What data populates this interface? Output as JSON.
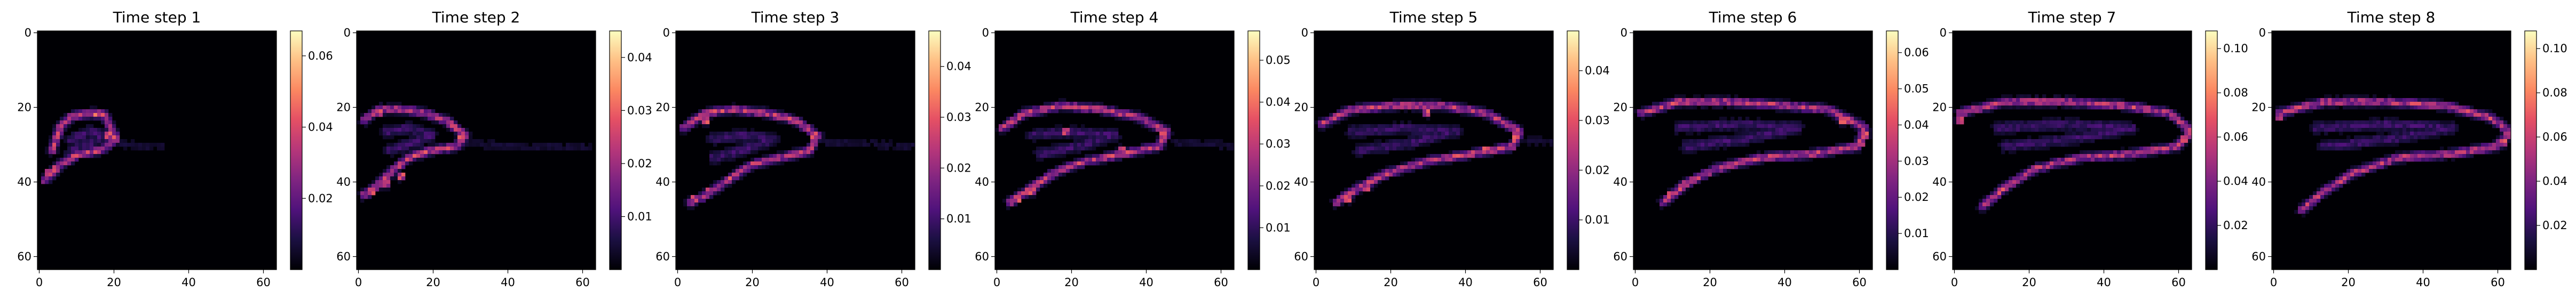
{
  "chart_data": [
    {
      "type": "heatmap",
      "title": "Time step 1",
      "xticks": [
        0,
        20,
        40,
        60
      ],
      "yticks": [
        0,
        20,
        40,
        60
      ],
      "xlim": [
        0,
        64
      ],
      "ylim": [
        64,
        0
      ],
      "grid_size": [
        64,
        64
      ],
      "colormap": "magma",
      "colorbar": {
        "ticks": [
          "0.02",
          "0.04",
          "0.06"
        ],
        "range": [
          0,
          0.067
        ]
      },
      "structure": {
        "outline": [
          [
            4,
            32
          ],
          [
            6,
            26
          ],
          [
            9,
            23
          ],
          [
            15,
            22
          ],
          [
            18,
            22.5
          ],
          [
            21,
            29
          ],
          [
            17,
            32
          ],
          [
            11,
            33
          ],
          [
            6,
            36
          ],
          [
            2,
            40
          ]
        ],
        "inner": [
          [
            9,
            29
          ],
          [
            14,
            27
          ],
          [
            18,
            28
          ],
          [
            14,
            30
          ],
          [
            9,
            32
          ]
        ],
        "bright": [
          [
            19,
            28
          ],
          [
            20,
            29
          ],
          [
            3,
            38
          ],
          [
            5,
            37
          ],
          [
            16,
            22.5
          ]
        ],
        "tail": [
          [
            22,
            30
          ],
          [
            28,
            31
          ],
          [
            34,
            31
          ]
        ]
      },
      "peak_value": 0.067
    },
    {
      "type": "heatmap",
      "title": "Time step 2",
      "xticks": [
        0,
        20,
        40,
        60
      ],
      "yticks": [
        0,
        20,
        40,
        60
      ],
      "xlim": [
        0,
        64
      ],
      "ylim": [
        64,
        0
      ],
      "grid_size": [
        64,
        64
      ],
      "colormap": "magma",
      "colorbar": {
        "ticks": [
          "0.01",
          "0.02",
          "0.03",
          "0.04"
        ],
        "range": [
          0,
          0.045
        ]
      },
      "structure": {
        "outline": [
          [
            2,
            24
          ],
          [
            6,
            21
          ],
          [
            12,
            21
          ],
          [
            18,
            22
          ],
          [
            24,
            24
          ],
          [
            29,
            28
          ],
          [
            27,
            31
          ],
          [
            20,
            32
          ],
          [
            14,
            34
          ],
          [
            9,
            38
          ],
          [
            5,
            42
          ],
          [
            2,
            44
          ]
        ],
        "inner": [
          [
            8,
            27
          ],
          [
            14,
            26
          ],
          [
            20,
            28
          ],
          [
            15,
            30
          ],
          [
            9,
            32
          ]
        ],
        "bright": [
          [
            28,
            28
          ],
          [
            12,
            39
          ],
          [
            8,
            41
          ],
          [
            4,
            43
          ],
          [
            6,
            22
          ]
        ],
        "tail": [
          [
            30,
            30
          ],
          [
            42,
            31
          ],
          [
            55,
            31
          ],
          [
            62,
            31
          ]
        ]
      },
      "peak_value": 0.045
    },
    {
      "type": "heatmap",
      "title": "Time step 3",
      "xticks": [
        0,
        20,
        40,
        60
      ],
      "yticks": [
        0,
        20,
        40,
        60
      ],
      "xlim": [
        0,
        64
      ],
      "ylim": [
        64,
        0
      ],
      "grid_size": [
        64,
        64
      ],
      "colormap": "magma",
      "colorbar": {
        "ticks": [
          "0.01",
          "0.02",
          "0.03",
          "0.04"
        ],
        "range": [
          0,
          0.047
        ]
      },
      "structure": {
        "outline": [
          [
            2,
            26
          ],
          [
            8,
            22
          ],
          [
            16,
            21
          ],
          [
            24,
            22
          ],
          [
            32,
            24
          ],
          [
            38,
            28
          ],
          [
            36,
            32
          ],
          [
            28,
            34
          ],
          [
            20,
            36
          ],
          [
            14,
            40
          ],
          [
            8,
            44
          ],
          [
            4,
            46
          ]
        ],
        "inner": [
          [
            10,
            29
          ],
          [
            18,
            28
          ],
          [
            26,
            29
          ],
          [
            18,
            32
          ],
          [
            10,
            34
          ]
        ],
        "bright": [
          [
            37,
            28
          ],
          [
            14,
            40
          ],
          [
            9,
            43
          ],
          [
            5,
            45
          ],
          [
            8,
            24
          ]
        ],
        "tail": [
          [
            40,
            30
          ],
          [
            50,
            30
          ],
          [
            60,
            31
          ],
          [
            64,
            31
          ]
        ]
      },
      "peak_value": 0.047
    },
    {
      "type": "heatmap",
      "title": "Time step 4",
      "xticks": [
        0,
        20,
        40,
        60
      ],
      "yticks": [
        0,
        20,
        40,
        60
      ],
      "xlim": [
        0,
        64
      ],
      "ylim": [
        64,
        0
      ],
      "grid_size": [
        64,
        64
      ],
      "colormap": "magma",
      "colorbar": {
        "ticks": [
          "0.01",
          "0.02",
          "0.03",
          "0.04",
          "0.05"
        ],
        "range": [
          0,
          0.057
        ]
      },
      "structure": {
        "outline": [
          [
            2,
            26
          ],
          [
            8,
            22
          ],
          [
            18,
            20
          ],
          [
            28,
            21
          ],
          [
            38,
            23
          ],
          [
            46,
            27
          ],
          [
            44,
            31
          ],
          [
            34,
            33
          ],
          [
            24,
            35
          ],
          [
            16,
            38
          ],
          [
            10,
            42
          ],
          [
            4,
            46
          ]
        ],
        "inner": [
          [
            10,
            28
          ],
          [
            20,
            27
          ],
          [
            32,
            28
          ],
          [
            22,
            31
          ],
          [
            12,
            33
          ]
        ],
        "bright": [
          [
            45,
            28
          ],
          [
            19,
            27
          ],
          [
            10,
            43
          ],
          [
            6,
            45
          ],
          [
            34,
            32
          ]
        ],
        "tail": [
          [
            48,
            30
          ],
          [
            56,
            30
          ],
          [
            64,
            31
          ]
        ]
      },
      "peak_value": 0.057
    },
    {
      "type": "heatmap",
      "title": "Time step 5",
      "xticks": [
        0,
        20,
        40,
        60
      ],
      "yticks": [
        0,
        20,
        40,
        60
      ],
      "xlim": [
        0,
        64
      ],
      "ylim": [
        64,
        0
      ],
      "grid_size": [
        64,
        64
      ],
      "colormap": "magma",
      "colorbar": {
        "ticks": [
          "0.01",
          "0.02",
          "0.03",
          "0.04"
        ],
        "range": [
          0,
          0.048
        ]
      },
      "structure": {
        "outline": [
          [
            2,
            25
          ],
          [
            10,
            21
          ],
          [
            22,
            20
          ],
          [
            34,
            20
          ],
          [
            46,
            22
          ],
          [
            55,
            27
          ],
          [
            53,
            31
          ],
          [
            42,
            33
          ],
          [
            30,
            35
          ],
          [
            20,
            38
          ],
          [
            12,
            42
          ],
          [
            6,
            46
          ]
        ],
        "inner": [
          [
            10,
            27
          ],
          [
            24,
            26
          ],
          [
            38,
            27
          ],
          [
            26,
            30
          ],
          [
            12,
            32
          ]
        ],
        "bright": [
          [
            54,
            28
          ],
          [
            30,
            22
          ],
          [
            14,
            42
          ],
          [
            9,
            45
          ],
          [
            46,
            32
          ]
        ],
        "tail": [
          [
            57,
            29
          ],
          [
            62,
            30
          ],
          [
            64,
            30
          ]
        ]
      },
      "peak_value": 0.048
    },
    {
      "type": "heatmap",
      "title": "Time step 6",
      "xticks": [
        0,
        20,
        40,
        60
      ],
      "yticks": [
        0,
        20,
        40,
        60
      ],
      "xlim": [
        0,
        64
      ],
      "ylim": [
        64,
        0
      ],
      "grid_size": [
        64,
        64
      ],
      "colormap": "magma",
      "colorbar": {
        "ticks": [
          "0.01",
          "0.02",
          "0.03",
          "0.04",
          "0.05",
          "0.06"
        ],
        "range": [
          0,
          0.066
        ]
      },
      "structure": {
        "outline": [
          [
            2,
            22
          ],
          [
            12,
            19
          ],
          [
            26,
            19
          ],
          [
            40,
            20
          ],
          [
            52,
            21
          ],
          [
            62,
            26
          ],
          [
            60,
            31
          ],
          [
            48,
            33
          ],
          [
            34,
            34
          ],
          [
            22,
            37
          ],
          [
            14,
            41
          ],
          [
            8,
            46
          ]
        ],
        "inner": [
          [
            12,
            26
          ],
          [
            28,
            25
          ],
          [
            44,
            26
          ],
          [
            30,
            29
          ],
          [
            14,
            31
          ]
        ],
        "bright": [
          [
            62,
            28
          ],
          [
            61,
            30
          ],
          [
            14,
            41
          ],
          [
            10,
            44
          ],
          [
            56,
            24
          ]
        ],
        "tail": [
          [
            63,
            27
          ]
        ]
      },
      "peak_value": 0.066
    },
    {
      "type": "heatmap",
      "title": "Time step 7",
      "xticks": [
        0,
        20,
        40,
        60
      ],
      "yticks": [
        0,
        20,
        40,
        60
      ],
      "xlim": [
        0,
        64
      ],
      "ylim": [
        64,
        0
      ],
      "grid_size": [
        64,
        64
      ],
      "colormap": "magma",
      "colorbar": {
        "ticks": [
          "0.02",
          "0.04",
          "0.06",
          "0.08",
          "0.10"
        ],
        "range": [
          0,
          0.108
        ]
      },
      "structure": {
        "outline": [
          [
            2,
            22
          ],
          [
            14,
            19
          ],
          [
            30,
            19
          ],
          [
            46,
            20
          ],
          [
            58,
            22
          ],
          [
            64,
            27
          ],
          [
            60,
            31
          ],
          [
            48,
            33
          ],
          [
            34,
            34
          ],
          [
            22,
            37
          ],
          [
            14,
            42
          ],
          [
            8,
            47
          ]
        ],
        "inner": [
          [
            12,
            26
          ],
          [
            30,
            25
          ],
          [
            48,
            26
          ],
          [
            32,
            29
          ],
          [
            14,
            31
          ]
        ],
        "bright": [
          [
            63,
            27
          ],
          [
            62,
            29
          ],
          [
            2,
            24
          ]
        ],
        "tail": [
          [
            64,
            28
          ]
        ]
      },
      "peak_value": 0.108
    },
    {
      "type": "heatmap",
      "title": "Time step 8",
      "xticks": [
        0,
        20,
        40,
        60
      ],
      "yticks": [
        0,
        20,
        40,
        60
      ],
      "xlim": [
        0,
        64
      ],
      "ylim": [
        64,
        0
      ],
      "grid_size": [
        64,
        64
      ],
      "colormap": "magma",
      "colorbar": {
        "ticks": [
          "0.02",
          "0.04",
          "0.06",
          "0.08",
          "0.10"
        ],
        "range": [
          0,
          0.108
        ]
      },
      "structure": {
        "outline": [
          [
            2,
            22
          ],
          [
            14,
            19
          ],
          [
            30,
            19
          ],
          [
            46,
            20
          ],
          [
            58,
            23
          ],
          [
            64,
            27
          ],
          [
            60,
            31
          ],
          [
            48,
            33
          ],
          [
            34,
            34
          ],
          [
            22,
            38
          ],
          [
            14,
            43
          ],
          [
            8,
            48
          ]
        ],
        "inner": [
          [
            12,
            26
          ],
          [
            30,
            25
          ],
          [
            48,
            26
          ],
          [
            32,
            29
          ],
          [
            14,
            31
          ]
        ],
        "bright": [
          [
            63,
            28
          ],
          [
            62,
            30
          ],
          [
            2,
            23
          ]
        ],
        "tail": [
          [
            64,
            28
          ]
        ]
      },
      "peak_value": 0.108
    }
  ]
}
